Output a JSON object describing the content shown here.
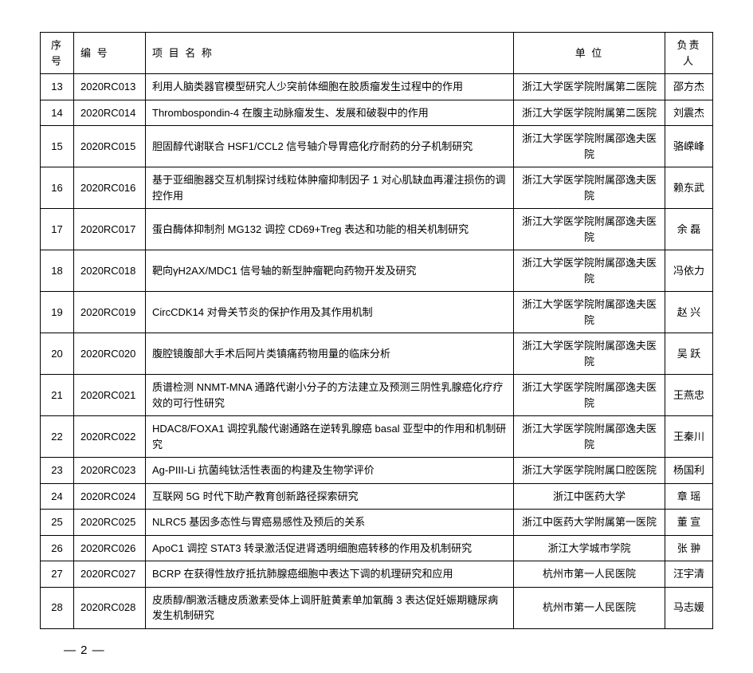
{
  "headers": {
    "seq": "序号",
    "code": "编 号",
    "title": "项 目 名 称",
    "unit": "单   位",
    "person": "负责人"
  },
  "rows": [
    {
      "seq": "13",
      "code": "2020RC013",
      "title": "利用人脑类器官模型研究人少突前体细胞在胶质瘤发生过程中的作用",
      "unit": "浙江大学医学院附属第二医院",
      "person": "邵方杰"
    },
    {
      "seq": "14",
      "code": "2020RC014",
      "title": "Thrombospondin-4 在腹主动脉瘤发生、发展和破裂中的作用",
      "unit": "浙江大学医学院附属第二医院",
      "person": "刘震杰"
    },
    {
      "seq": "15",
      "code": "2020RC015",
      "title": "胆固醇代谢联合 HSF1/CCL2 信号轴介导胃癌化疗耐药的分子机制研究",
      "unit": "浙江大学医学院附属邵逸夫医院",
      "person": "骆嵘峰"
    },
    {
      "seq": "16",
      "code": "2020RC016",
      "title": "基于亚细胞器交互机制探讨线粒体肿瘤抑制因子 1 对心肌缺血再灌注损伤的调控作用",
      "unit": "浙江大学医学院附属邵逸夫医院",
      "person": "赖东武"
    },
    {
      "seq": "17",
      "code": "2020RC017",
      "title": "蛋白酶体抑制剂 MG132 调控 CD69+Treg 表达和功能的相关机制研究",
      "unit": "浙江大学医学院附属邵逸夫医院",
      "person": "余 磊"
    },
    {
      "seq": "18",
      "code": "2020RC018",
      "title": "靶向γH2AX/MDC1 信号轴的新型肿瘤靶向药物开发及研究",
      "unit": "浙江大学医学院附属邵逸夫医院",
      "person": "冯依力"
    },
    {
      "seq": "19",
      "code": "2020RC019",
      "title": "CircCDK14 对骨关节炎的保护作用及其作用机制",
      "unit": "浙江大学医学院附属邵逸夫医院",
      "person": "赵 兴"
    },
    {
      "seq": "20",
      "code": "2020RC020",
      "title": "腹腔镜腹部大手术后阿片类镇痛药物用量的临床分析",
      "unit": "浙江大学医学院附属邵逸夫医院",
      "person": "吴 跃"
    },
    {
      "seq": "21",
      "code": "2020RC021",
      "title": "质谱检测 NNMT-MNA 通路代谢小分子的方法建立及预测三阴性乳腺癌化疗疗效的可行性研究",
      "unit": "浙江大学医学院附属邵逸夫医院",
      "person": "王燕忠"
    },
    {
      "seq": "22",
      "code": "2020RC022",
      "title": "HDAC8/FOXA1 调控乳酸代谢通路在逆转乳腺癌 basal 亚型中的作用和机制研究",
      "unit": "浙江大学医学院附属邵逸夫医院",
      "person": "王秦川"
    },
    {
      "seq": "23",
      "code": "2020RC023",
      "title": "Ag-PIII-Li 抗菌纯钛活性表面的构建及生物学评价",
      "unit": "浙江大学医学院附属口腔医院",
      "person": "杨国利"
    },
    {
      "seq": "24",
      "code": "2020RC024",
      "title": "互联网 5G 时代下助产教育创新路径探索研究",
      "unit": "浙江中医药大学",
      "person": "章 瑶"
    },
    {
      "seq": "25",
      "code": "2020RC025",
      "title": "NLRC5 基因多态性与胃癌易感性及预后的关系",
      "unit": "浙江中医药大学附属第一医院",
      "person": "董 宣"
    },
    {
      "seq": "26",
      "code": "2020RC026",
      "title": "ApoC1 调控 STAT3 转录激活促进肾透明细胞癌转移的作用及机制研究",
      "unit": "浙江大学城市学院",
      "person": "张 翀"
    },
    {
      "seq": "27",
      "code": "2020RC027",
      "title": "BCRP 在获得性放疗抵抗肺腺癌细胞中表达下调的机理研究和应用",
      "unit": "杭州市第一人民医院",
      "person": "汪宇清"
    },
    {
      "seq": "28",
      "code": "2020RC028",
      "title": "皮质醇/酮激活糖皮质激素受体上调肝脏黄素单加氧酶 3 表达促妊娠期糖尿病发生机制研究",
      "unit": "杭州市第一人民医院",
      "person": "马志媛"
    }
  ],
  "page_label": "— 2 —"
}
